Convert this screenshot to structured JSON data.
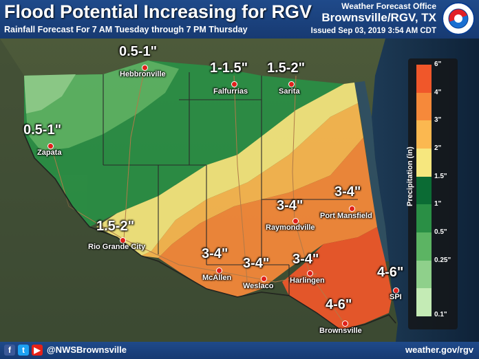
{
  "header": {
    "title": "Flood Potential Increasing for RGV",
    "subtitle": "Rainfall Forecast For 7 AM Tuesday through 7 PM Thursday",
    "office": "Weather Forecast Office",
    "office_name": "Brownsville/RGV, TX",
    "issued": "Issued Sep 03, 2019 3:54 AM CDT",
    "logo_text": "NATIONAL WEATHER SERVICE"
  },
  "footer": {
    "social_icons": [
      "facebook-icon",
      "twitter-icon",
      "youtube-icon"
    ],
    "handle": "@NWSBrownsville",
    "website": "weather.gov/rgv"
  },
  "legend": {
    "title": "Precipitation (in)",
    "bins": [
      {
        "label": "6\"",
        "color": "#f0572a"
      },
      {
        "label": "4\"",
        "color": "#f6893a"
      },
      {
        "label": "3\"",
        "color": "#fbb850"
      },
      {
        "label": "2\"",
        "color": "#f6e77e"
      },
      {
        "label": "1.5\"",
        "color": "#0b6b34"
      },
      {
        "label": "1\"",
        "color": "#2a8f45"
      },
      {
        "label": "0.5\"",
        "color": "#5cb463"
      },
      {
        "label": "0.25\"",
        "color": "#8fd08b"
      },
      {
        "label": "0.1\"",
        "color": "#c4ebb5"
      }
    ]
  },
  "map": {
    "amounts": [
      "0.5-1\"",
      "0.5-1\"",
      "1-1.5\"",
      "1.5-2\"",
      "1.5-2\"",
      "3-4\"",
      "3-4\"",
      "3-4\"",
      "3-4\"",
      "3-4\"",
      "4-6\"",
      "4-6\""
    ],
    "cities": [
      "Hebbronville",
      "Falfurrias",
      "Sarita",
      "Zapata",
      "Port Mansfield",
      "Raymondville",
      "Rio Grande City",
      "McAllen",
      "Weslaco",
      "Harlingen",
      "SPI",
      "Brownsville"
    ]
  }
}
